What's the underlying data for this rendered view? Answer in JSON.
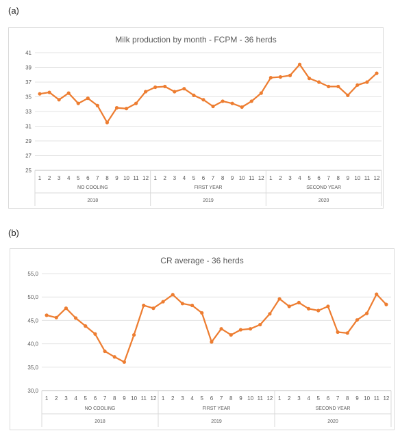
{
  "labels": {
    "a": "(a)",
    "b": "(b)"
  },
  "chart_data": [
    {
      "type": "line",
      "title": "Milk production by month - FCPM - 36 herds",
      "categories": [
        "1",
        "2",
        "3",
        "4",
        "5",
        "6",
        "7",
        "8",
        "9",
        "10",
        "11",
        "12",
        "1",
        "2",
        "3",
        "4",
        "5",
        "6",
        "7",
        "8",
        "9",
        "10",
        "11",
        "12",
        "1",
        "2",
        "3",
        "4",
        "5",
        "6",
        "7",
        "8",
        "9",
        "10",
        "11",
        "12"
      ],
      "groups": [
        {
          "label": "NO COOLING",
          "year": "2018"
        },
        {
          "label": "FIRST YEAR",
          "year": "2019"
        },
        {
          "label": "SECOND YEAR",
          "year": "2020"
        }
      ],
      "series": [
        {
          "values": [
            35.4,
            35.6,
            34.6,
            35.5,
            34.1,
            34.8,
            33.8,
            31.5,
            33.5,
            33.4,
            34.1,
            35.7,
            36.3,
            36.4,
            35.7,
            36.1,
            35.2,
            34.6,
            33.7,
            34.4,
            34.1,
            33.6,
            34.4,
            35.5,
            37.6,
            37.7,
            37.9,
            39.4,
            37.5,
            37.0,
            36.4,
            36.4,
            35.2,
            36.6,
            37.0,
            38.2
          ]
        }
      ],
      "ylim": [
        25,
        41
      ],
      "yticks": [
        "25",
        "27",
        "29",
        "31",
        "33",
        "35",
        "37",
        "39",
        "41"
      ],
      "grid": true,
      "color": "#ED7D31"
    },
    {
      "type": "line",
      "title": "CR average - 36 herds",
      "categories": [
        "1",
        "2",
        "3",
        "4",
        "5",
        "6",
        "7",
        "8",
        "9",
        "10",
        "11",
        "12",
        "1",
        "2",
        "3",
        "4",
        "5",
        "6",
        "7",
        "8",
        "9",
        "10",
        "11",
        "12",
        "1",
        "2",
        "3",
        "4",
        "5",
        "6",
        "7",
        "8",
        "9",
        "10",
        "11",
        "12"
      ],
      "groups": [
        {
          "label": "NO COOLING",
          "year": "2018"
        },
        {
          "label": "FIRST YEAR",
          "year": "2019"
        },
        {
          "label": "SECOND YEAR",
          "year": "2020"
        }
      ],
      "series": [
        {
          "values": [
            46.1,
            45.6,
            47.6,
            45.5,
            43.8,
            42.1,
            38.4,
            37.2,
            36.1,
            41.9,
            48.2,
            47.6,
            49.0,
            50.5,
            48.6,
            48.2,
            46.6,
            40.4,
            43.2,
            41.9,
            43.0,
            43.2,
            44.1,
            46.4,
            49.6,
            48.0,
            48.8,
            47.5,
            47.1,
            48.0,
            42.5,
            42.3,
            45.1,
            46.5,
            50.6,
            48.4
          ]
        }
      ],
      "ylim": [
        30,
        55
      ],
      "yticks": [
        "30,0",
        "35,0",
        "40,0",
        "45,0",
        "50,0",
        "55,0"
      ],
      "grid": true,
      "color": "#ED7D31"
    }
  ]
}
